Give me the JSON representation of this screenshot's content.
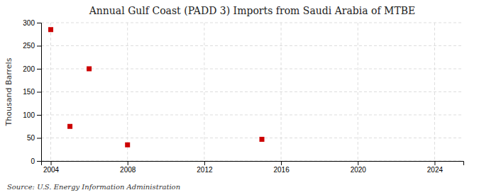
{
  "chart_data": {
    "type": "scatter",
    "title": "Annual Gulf Coast (PADD 3) Imports from Saudi Arabia of MTBE",
    "ylabel": "Thousand Barrels",
    "source": "Source: U.S. Energy Information Administration",
    "x": [
      2004,
      2005,
      2006,
      2008,
      2015
    ],
    "values": [
      285,
      75,
      200,
      35,
      47
    ],
    "color": "#cc0000",
    "marker": "square",
    "xlim": [
      2003.5,
      2025.5
    ],
    "ylim": [
      0,
      300
    ],
    "xticks": [
      2004,
      2008,
      2012,
      2016,
      2020,
      2024
    ],
    "yticks": [
      0,
      50,
      100,
      150,
      200,
      250,
      300
    ],
    "grid": true
  }
}
